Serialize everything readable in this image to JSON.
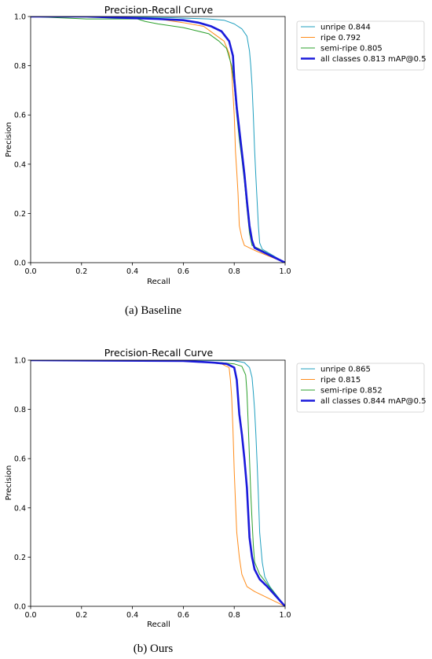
{
  "chart_data": [
    {
      "type": "line",
      "title": "Precision-Recall Curve",
      "xlabel": "Recall",
      "ylabel": "Precision",
      "xlim": [
        0,
        1
      ],
      "ylim": [
        0,
        1
      ],
      "xticks": [
        "0.0",
        "0.2",
        "0.4",
        "0.6",
        "0.8",
        "1.0"
      ],
      "yticks": [
        "0.0",
        "0.2",
        "0.4",
        "0.6",
        "0.8",
        "1.0"
      ],
      "grid": false,
      "legend_position": "outside-top-right",
      "caption": "(a)  Baseline",
      "series": [
        {
          "name": "unripe 0.844",
          "color": "#1f9fbf",
          "width": 1.0,
          "points": [
            [
              0,
              1
            ],
            [
              0.22,
              1
            ],
            [
              0.55,
              0.995
            ],
            [
              0.7,
              0.99
            ],
            [
              0.76,
              0.985
            ],
            [
              0.8,
              0.97
            ],
            [
              0.83,
              0.95
            ],
            [
              0.85,
              0.92
            ],
            [
              0.86,
              0.86
            ],
            [
              0.865,
              0.8
            ],
            [
              0.87,
              0.72
            ],
            [
              0.875,
              0.6
            ],
            [
              0.88,
              0.46
            ],
            [
              0.885,
              0.35
            ],
            [
              0.89,
              0.25
            ],
            [
              0.895,
              0.15
            ],
            [
              0.9,
              0.08
            ],
            [
              0.91,
              0.055
            ],
            [
              1,
              0
            ]
          ]
        },
        {
          "name": "ripe 0.792",
          "color": "#ff8c1a",
          "width": 1.0,
          "points": [
            [
              0,
              1
            ],
            [
              0.22,
              1
            ],
            [
              0.5,
              0.99
            ],
            [
              0.6,
              0.975
            ],
            [
              0.68,
              0.96
            ],
            [
              0.72,
              0.93
            ],
            [
              0.76,
              0.9
            ],
            [
              0.78,
              0.85
            ],
            [
              0.79,
              0.78
            ],
            [
              0.8,
              0.6
            ],
            [
              0.805,
              0.45
            ],
            [
              0.81,
              0.37
            ],
            [
              0.815,
              0.28
            ],
            [
              0.82,
              0.15
            ],
            [
              0.83,
              0.1
            ],
            [
              0.84,
              0.07
            ],
            [
              0.88,
              0.05
            ],
            [
              1,
              0
            ]
          ]
        },
        {
          "name": "semi-ripe 0.805",
          "color": "#2ca02c",
          "width": 1.0,
          "points": [
            [
              0,
              1
            ],
            [
              0.22,
              0.99
            ],
            [
              0.42,
              0.99
            ],
            [
              0.45,
              0.98
            ],
            [
              0.5,
              0.97
            ],
            [
              0.6,
              0.955
            ],
            [
              0.66,
              0.94
            ],
            [
              0.7,
              0.93
            ],
            [
              0.74,
              0.9
            ],
            [
              0.77,
              0.87
            ],
            [
              0.79,
              0.8
            ],
            [
              0.8,
              0.72
            ],
            [
              0.81,
              0.6
            ],
            [
              0.82,
              0.5
            ],
            [
              0.83,
              0.42
            ],
            [
              0.84,
              0.33
            ],
            [
              0.85,
              0.22
            ],
            [
              0.86,
              0.12
            ],
            [
              0.87,
              0.07
            ],
            [
              0.9,
              0.055
            ],
            [
              1,
              0
            ]
          ]
        },
        {
          "name": "all classes 0.813 mAP@0.5",
          "color": "#1a1adb",
          "width": 2.6,
          "points": [
            [
              0,
              1
            ],
            [
              0.22,
              1
            ],
            [
              0.5,
              0.99
            ],
            [
              0.6,
              0.985
            ],
            [
              0.66,
              0.975
            ],
            [
              0.71,
              0.96
            ],
            [
              0.75,
              0.94
            ],
            [
              0.78,
              0.9
            ],
            [
              0.795,
              0.84
            ],
            [
              0.8,
              0.75
            ],
            [
              0.81,
              0.63
            ],
            [
              0.82,
              0.54
            ],
            [
              0.83,
              0.45
            ],
            [
              0.84,
              0.36
            ],
            [
              0.85,
              0.25
            ],
            [
              0.86,
              0.15
            ],
            [
              0.87,
              0.09
            ],
            [
              0.88,
              0.06
            ],
            [
              0.9,
              0.05
            ],
            [
              1,
              0
            ]
          ]
        }
      ]
    },
    {
      "type": "line",
      "title": "Precision-Recall Curve",
      "xlabel": "Recall",
      "ylabel": "Precision",
      "xlim": [
        0,
        1
      ],
      "ylim": [
        0,
        1
      ],
      "xticks": [
        "0.0",
        "0.2",
        "0.4",
        "0.6",
        "0.8",
        "1.0"
      ],
      "yticks": [
        "0.0",
        "0.2",
        "0.4",
        "0.6",
        "0.8",
        "1.0"
      ],
      "grid": false,
      "legend_position": "outside-top-right",
      "caption": "(b) Ours",
      "series": [
        {
          "name": "unripe 0.865",
          "color": "#1f9fbf",
          "width": 1.0,
          "points": [
            [
              0,
              1
            ],
            [
              0.6,
              1
            ],
            [
              0.8,
              0.998
            ],
            [
              0.84,
              0.99
            ],
            [
              0.86,
              0.97
            ],
            [
              0.87,
              0.93
            ],
            [
              0.875,
              0.87
            ],
            [
              0.88,
              0.8
            ],
            [
              0.885,
              0.7
            ],
            [
              0.89,
              0.58
            ],
            [
              0.895,
              0.45
            ],
            [
              0.9,
              0.3
            ],
            [
              0.91,
              0.18
            ],
            [
              0.92,
              0.12
            ],
            [
              0.94,
              0.08
            ],
            [
              1,
              0
            ]
          ]
        },
        {
          "name": "ripe 0.815",
          "color": "#ff8c1a",
          "width": 1.0,
          "points": [
            [
              0,
              1
            ],
            [
              0.6,
              0.995
            ],
            [
              0.7,
              0.99
            ],
            [
              0.75,
              0.985
            ],
            [
              0.78,
              0.97
            ],
            [
              0.785,
              0.92
            ],
            [
              0.79,
              0.85
            ],
            [
              0.795,
              0.72
            ],
            [
              0.8,
              0.55
            ],
            [
              0.805,
              0.42
            ],
            [
              0.81,
              0.3
            ],
            [
              0.82,
              0.2
            ],
            [
              0.83,
              0.13
            ],
            [
              0.85,
              0.08
            ],
            [
              0.88,
              0.06
            ],
            [
              1,
              0
            ]
          ]
        },
        {
          "name": "semi-ripe 0.852",
          "color": "#2ca02c",
          "width": 1.0,
          "points": [
            [
              0,
              1
            ],
            [
              0.6,
              0.998
            ],
            [
              0.75,
              0.99
            ],
            [
              0.8,
              0.985
            ],
            [
              0.83,
              0.975
            ],
            [
              0.845,
              0.94
            ],
            [
              0.85,
              0.87
            ],
            [
              0.855,
              0.74
            ],
            [
              0.86,
              0.6
            ],
            [
              0.865,
              0.46
            ],
            [
              0.87,
              0.35
            ],
            [
              0.875,
              0.25
            ],
            [
              0.88,
              0.18
            ],
            [
              0.9,
              0.13
            ],
            [
              0.93,
              0.09
            ],
            [
              1,
              0
            ]
          ]
        },
        {
          "name": "all classes 0.844 mAP@0.5",
          "color": "#1a1adb",
          "width": 2.6,
          "points": [
            [
              0,
              1
            ],
            [
              0.6,
              0.997
            ],
            [
              0.72,
              0.99
            ],
            [
              0.77,
              0.985
            ],
            [
              0.8,
              0.97
            ],
            [
              0.81,
              0.92
            ],
            [
              0.815,
              0.85
            ],
            [
              0.82,
              0.78
            ],
            [
              0.83,
              0.7
            ],
            [
              0.84,
              0.6
            ],
            [
              0.85,
              0.48
            ],
            [
              0.855,
              0.38
            ],
            [
              0.86,
              0.28
            ],
            [
              0.87,
              0.2
            ],
            [
              0.88,
              0.15
            ],
            [
              0.9,
              0.11
            ],
            [
              0.93,
              0.08
            ],
            [
              1,
              0
            ]
          ]
        }
      ]
    }
  ]
}
